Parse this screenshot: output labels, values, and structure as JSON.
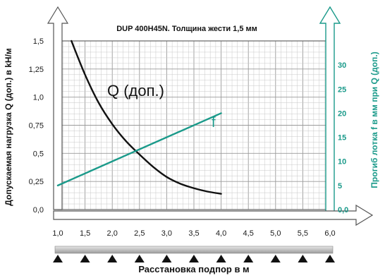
{
  "chart_data": {
    "type": "line",
    "title": "DUP 400H45N. Толщина жести 1,5 мм",
    "xlabel": "Расстановка подпор в м",
    "ylabel_left": "Допускаемая нагрузка Q (доп.) в kH/м",
    "ylabel_right": "Прогиб лотка f  в мм при Q (доп.)",
    "xlim": [
      1.0,
      6.0
    ],
    "ylim_left": [
      0,
      1.5
    ],
    "ylim_right": [
      0,
      35
    ],
    "x_ticks": [
      "1,0",
      "1,5",
      "2,0",
      "2,5",
      "3,0",
      "3,5",
      "4,0",
      "4,5",
      "5,0",
      "5,5",
      "6,0"
    ],
    "y_ticks_left": [
      "0,0",
      "0,25",
      "0,5",
      "0,75",
      "1,0",
      "1,25",
      "1,5"
    ],
    "y_ticks_right": [
      "0,0",
      "5",
      "10",
      "15",
      "20",
      "25",
      "30"
    ],
    "grid": true,
    "colors": {
      "q": "#111111",
      "f": "#1a9a8a",
      "grid": "#c8c8c8",
      "axis": "#555555"
    },
    "series": [
      {
        "name": "Q (доп.)",
        "axis": "left",
        "x": [
          1.25,
          1.5,
          1.75,
          2.0,
          2.25,
          2.5,
          2.75,
          3.0,
          3.25,
          3.5,
          3.75,
          4.0
        ],
        "y": [
          1.5,
          1.2,
          0.95,
          0.76,
          0.61,
          0.49,
          0.38,
          0.29,
          0.23,
          0.19,
          0.16,
          0.14
        ]
      },
      {
        "name": "f",
        "axis": "right",
        "x": [
          1.0,
          4.0
        ],
        "y": [
          5,
          20
        ]
      }
    ],
    "support_markers": [
      1.0,
      1.5,
      2.0,
      2.5,
      3.0,
      3.5,
      4.0,
      4.5,
      5.0,
      5.5,
      6.0
    ]
  }
}
